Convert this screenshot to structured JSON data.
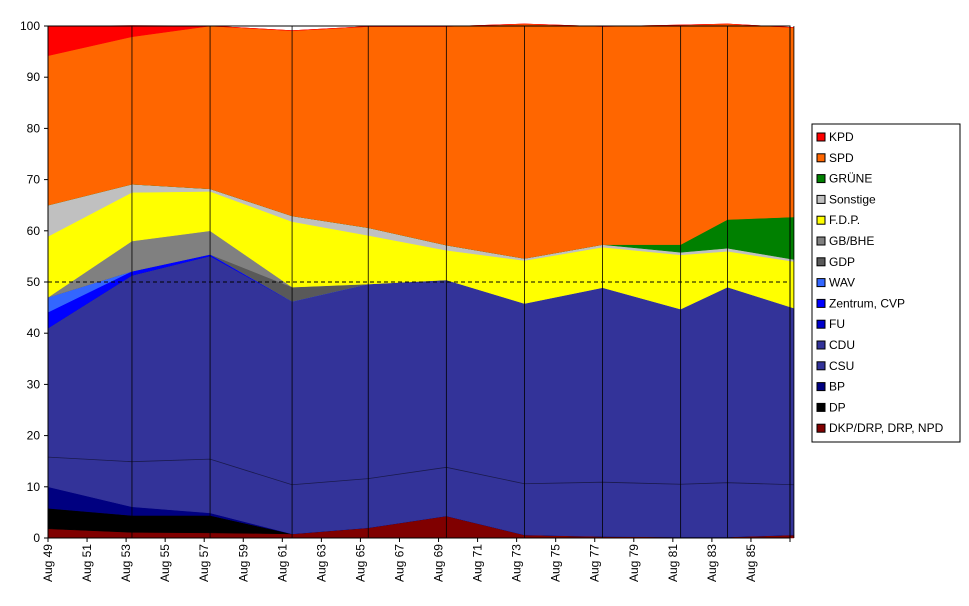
{
  "chart_data": {
    "type": "area",
    "stacked": true,
    "stack_mode": "percent",
    "ylim": [
      0,
      100
    ],
    "ytick_step": 10,
    "yticks": [
      0,
      10,
      20,
      30,
      40,
      50,
      60,
      70,
      80,
      90,
      100
    ],
    "reference_line": {
      "y": 50,
      "style": "dashed",
      "color": "#000000"
    },
    "x_categories": [
      "Aug 49",
      "Aug 51",
      "Aug 53",
      "Aug 55",
      "Aug 57",
      "Aug 59",
      "Aug 61",
      "Aug 63",
      "Aug 65",
      "Aug 67",
      "Aug 69",
      "Aug 71",
      "Aug 73",
      "Aug 75",
      "Aug 77",
      "Aug 79",
      "Aug 81",
      "Aug 83",
      "Aug 85"
    ],
    "election_labels": [
      "Aug 49",
      "Aug 53",
      "Aug 57",
      "Aug 61",
      "Aug 65",
      "Aug 69",
      "Aug 73",
      "Aug 77",
      "Aug 81",
      "Aug 83",
      "Aug 85"
    ],
    "election_positions": [
      0,
      2.15,
      4.15,
      6.25,
      8.2,
      10.2,
      12.2,
      14.2,
      16.2,
      17.4,
      19.1
    ],
    "legend_position": "right",
    "series": [
      {
        "name": "DKP/DRP, DRP, NPD",
        "color": "#800000",
        "values": [
          1.8,
          1.1,
          1.0,
          0.8,
          2.0,
          4.3,
          0.6,
          0.3,
          0.2,
          0.2,
          0.6
        ]
      },
      {
        "name": "DP",
        "color": "#000000",
        "values": [
          4.0,
          3.3,
          3.4,
          0.0,
          0.0,
          0.0,
          0.0,
          0.0,
          0.0,
          0.0,
          0.0
        ]
      },
      {
        "name": "BP",
        "color": "#000080",
        "values": [
          4.2,
          1.7,
          0.5,
          0.0,
          0.0,
          0.0,
          0.0,
          0.0,
          0.0,
          0.0,
          0.0
        ]
      },
      {
        "name": "CSU",
        "color": "#333399",
        "values": [
          5.8,
          8.8,
          10.5,
          9.6,
          9.6,
          9.5,
          10.0,
          10.6,
          10.3,
          10.6,
          9.8
        ]
      },
      {
        "name": "CDU",
        "color": "#333399",
        "values": [
          25.2,
          36.4,
          39.7,
          35.8,
          38.0,
          36.6,
          35.2,
          38.0,
          34.2,
          38.2,
          34.5
        ]
      },
      {
        "name": "FU",
        "color": "#0000cc",
        "values": [
          0.0,
          0.0,
          0.0,
          0.0,
          0.0,
          0.0,
          0.0,
          0.0,
          0.0,
          0.0,
          0.0
        ]
      },
      {
        "name": "Zentrum, CVP",
        "color": "#0000ff",
        "values": [
          3.1,
          0.8,
          0.3,
          0.0,
          0.0,
          0.0,
          0.0,
          0.0,
          0.0,
          0.0,
          0.0
        ]
      },
      {
        "name": "WAV",
        "color": "#3366ff",
        "values": [
          2.9,
          0.0,
          0.0,
          0.0,
          0.0,
          0.0,
          0.0,
          0.0,
          0.0,
          0.0,
          0.0
        ]
      },
      {
        "name": "GDP",
        "color": "#595959",
        "values": [
          0.0,
          0.0,
          0.0,
          2.8,
          0.0,
          0.0,
          0.0,
          0.0,
          0.0,
          0.0,
          0.0
        ]
      },
      {
        "name": "GB/BHE",
        "color": "#808080",
        "values": [
          0.0,
          5.9,
          4.6,
          0.0,
          0.0,
          0.0,
          0.0,
          0.0,
          0.0,
          0.0,
          0.0
        ]
      },
      {
        "name": "F.D.P.",
        "color": "#ffff00",
        "values": [
          11.9,
          9.5,
          7.7,
          12.8,
          9.5,
          5.8,
          8.4,
          7.9,
          10.6,
          7.0,
          9.1
        ]
      },
      {
        "name": "Sonstige",
        "color": "#c0c0c0",
        "values": [
          6.1,
          1.6,
          0.5,
          1.1,
          1.5,
          1.0,
          0.4,
          0.5,
          0.5,
          0.6,
          0.4
        ]
      },
      {
        "name": "GRÜNE",
        "color": "#008000",
        "values": [
          0.0,
          0.0,
          0.0,
          0.0,
          0.0,
          0.0,
          0.0,
          0.0,
          1.5,
          5.6,
          8.3
        ]
      },
      {
        "name": "SPD",
        "color": "#ff6600",
        "values": [
          29.2,
          28.8,
          31.8,
          36.2,
          39.3,
          42.7,
          45.8,
          42.6,
          42.9,
          38.2,
          37.0
        ]
      },
      {
        "name": "KPD",
        "color": "#ff0000",
        "values": [
          5.7,
          2.2,
          0.0,
          0.0,
          0.0,
          0.0,
          0.0,
          0.0,
          0.0,
          0.0,
          0.0
        ]
      }
    ]
  }
}
